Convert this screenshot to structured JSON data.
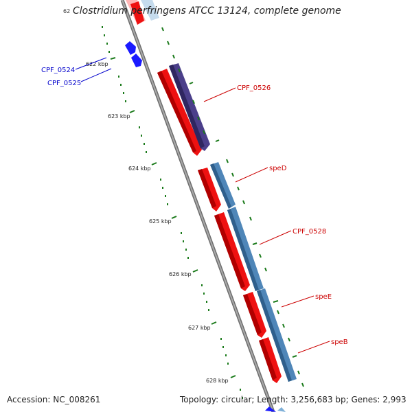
{
  "header": {
    "title": "Clostridium perfringens ATCC 13124, complete genome",
    "cut_label": "62"
  },
  "footer": {
    "accession": "Accession: NC_008261",
    "summary": "Topology: circular; Length: 3,256,683 bp; Genes: 2,993"
  },
  "tick_labels": [
    "622 kbp",
    "623 kbp",
    "624 kbp",
    "625 kbp",
    "626 kbp",
    "627 kbp",
    "628 kbp"
  ],
  "genes": [
    {
      "label": "CPF_0524",
      "color": "#0000cc"
    },
    {
      "label": "CPF_0525",
      "color": "#0000cc"
    },
    {
      "label": "CPF_0526",
      "color": "#cc0000"
    },
    {
      "label": "speD",
      "color": "#cc0000"
    },
    {
      "label": "CPF_0528",
      "color": "#cc0000"
    },
    {
      "label": "speE",
      "color": "#cc0000"
    },
    {
      "label": "speB",
      "color": "#cc0000"
    }
  ],
  "colors": {
    "cds_forward": "#ee1111",
    "cds_purple": "#4b3f8a",
    "cds_steelblue": "#4f86b8",
    "small_blue": "#1a1aff",
    "backbone": "#808080",
    "tick_green": "#1a7a1a"
  }
}
